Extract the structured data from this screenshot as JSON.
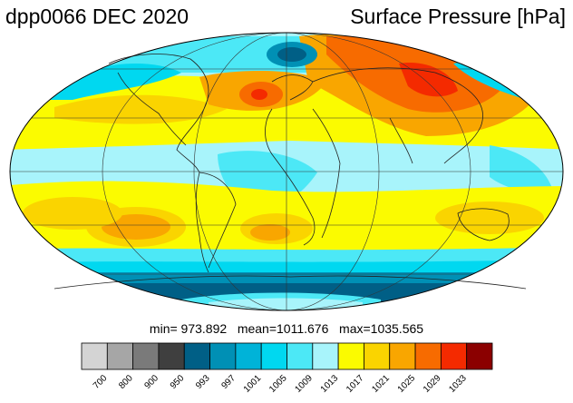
{
  "header": {
    "run_label": "dpp0066 DEC 2020",
    "variable_label": "Surface Pressure [hPa]"
  },
  "stats": {
    "line": "min= 973.892   mean=1011.676   max=1035.565"
  },
  "colorbar": {
    "ticks": [
      "700",
      "800",
      "900",
      "950",
      "993",
      "997",
      "1001",
      "1005",
      "1009",
      "1013",
      "1017",
      "1021",
      "1025",
      "1029",
      "1033"
    ],
    "colors": [
      "#d4d4d4",
      "#a6a6a6",
      "#7a7a7a",
      "#3f3f3f",
      "#005f86",
      "#0090b5",
      "#00b3d8",
      "#00d8f0",
      "#4ce8f6",
      "#a8f4fb",
      "#fbfb00",
      "#fad400",
      "#f9a600",
      "#f76b00",
      "#f42a00",
      "#8b0000"
    ]
  },
  "map": {
    "projection": "Mollweide",
    "colors": {
      "deep_blue": "#005f86",
      "mid_blue": "#0090b5",
      "cyan": "#00d8f0",
      "light_cyan": "#a8f4fb",
      "yellow": "#fbfb00",
      "gold": "#fad400",
      "orange": "#f9a600",
      "dark_orange": "#f76b00",
      "red": "#f42a00"
    }
  }
}
